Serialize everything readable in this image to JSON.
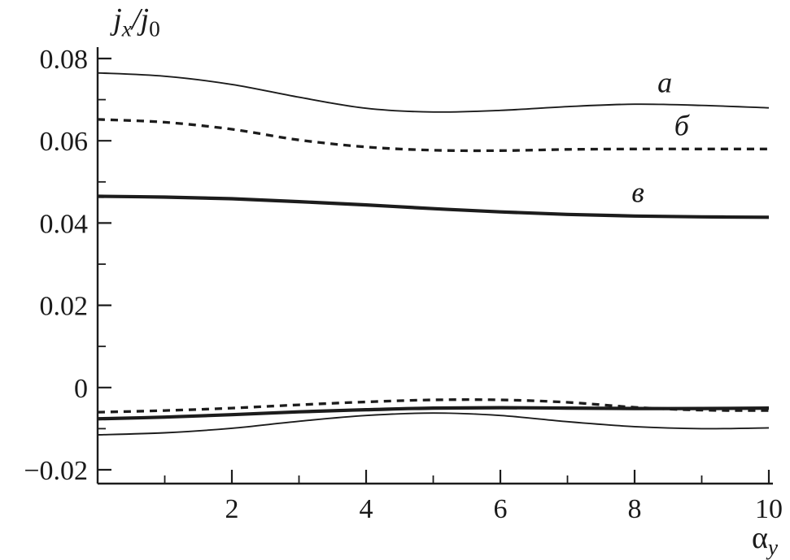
{
  "chart_data": {
    "type": "line",
    "title": "",
    "ylabel": "j_x/j_0",
    "ylabel_rich": [
      {
        "t": "j",
        "style": "italic"
      },
      {
        "t": "x",
        "style": "sub-italic"
      },
      {
        "t": "/",
        "style": "italic"
      },
      {
        "t": "j",
        "style": "italic"
      },
      {
        "t": "0",
        "style": "sub"
      }
    ],
    "xlabel": "α_y",
    "xlabel_rich": [
      {
        "t": "α",
        "style": "normal"
      },
      {
        "t": "y",
        "style": "sub-italic"
      }
    ],
    "xlim": [
      0,
      10
    ],
    "ylim": [
      -0.02,
      0.08
    ],
    "grid": false,
    "legend_position": "none (inline curve labels)",
    "x_ticks": {
      "major": [
        2,
        4,
        6,
        8,
        10
      ],
      "minor": [
        1,
        3,
        5,
        7,
        9
      ],
      "labels": [
        "2",
        "4",
        "6",
        "8",
        "10"
      ]
    },
    "y_ticks": {
      "major": [
        -0.02,
        0,
        0.02,
        0.04,
        0.06,
        0.08
      ],
      "minor": [
        -0.01,
        0.01,
        0.03,
        0.05,
        0.07
      ],
      "labels": [
        "−0.02",
        "0",
        "0.02",
        "0.04",
        "0.06",
        "0.08"
      ]
    },
    "x": [
      0,
      1,
      2,
      3,
      4,
      5,
      6,
      7,
      8,
      9,
      10
    ],
    "series": [
      {
        "id": "curve-a-upper",
        "style": "thin-solid",
        "values": [
          0.0765,
          0.0757,
          0.0737,
          0.0706,
          0.0679,
          0.067,
          0.0674,
          0.0683,
          0.0689,
          0.0686,
          0.068
        ]
      },
      {
        "id": "curve-b-upper",
        "style": "dashed",
        "values": [
          0.0652,
          0.0645,
          0.0628,
          0.0602,
          0.0585,
          0.0577,
          0.0576,
          0.0579,
          0.058,
          0.058,
          0.058
        ]
      },
      {
        "id": "curve-v-upper",
        "style": "thick-solid",
        "values": [
          0.0465,
          0.0463,
          0.0459,
          0.0452,
          0.0444,
          0.0435,
          0.0427,
          0.0421,
          0.0417,
          0.0415,
          0.0414
        ]
      },
      {
        "id": "curve-b-lower",
        "style": "dashed",
        "values": [
          -0.006,
          -0.0056,
          -0.005,
          -0.0042,
          -0.0035,
          -0.003,
          -0.003,
          -0.0036,
          -0.0048,
          -0.0055,
          -0.0056
        ]
      },
      {
        "id": "curve-v-lower",
        "style": "thick-solid",
        "values": [
          -0.0076,
          -0.0072,
          -0.0066,
          -0.0059,
          -0.0054,
          -0.005,
          -0.0049,
          -0.005,
          -0.0051,
          -0.0051,
          -0.005
        ]
      },
      {
        "id": "curve-a-lower",
        "style": "thin-solid",
        "values": [
          -0.0115,
          -0.011,
          -0.0099,
          -0.0082,
          -0.0068,
          -0.0062,
          -0.0068,
          -0.0083,
          -0.0095,
          -0.01,
          -0.0098
        ]
      }
    ],
    "annotations": [
      {
        "text": "a",
        "x": 8.45,
        "y": 0.0742
      },
      {
        "text": "б",
        "x": 8.7,
        "y": 0.0637
      },
      {
        "text": "в",
        "x": 8.05,
        "y": 0.0475
      }
    ],
    "line_color": "#1c1c1c"
  }
}
